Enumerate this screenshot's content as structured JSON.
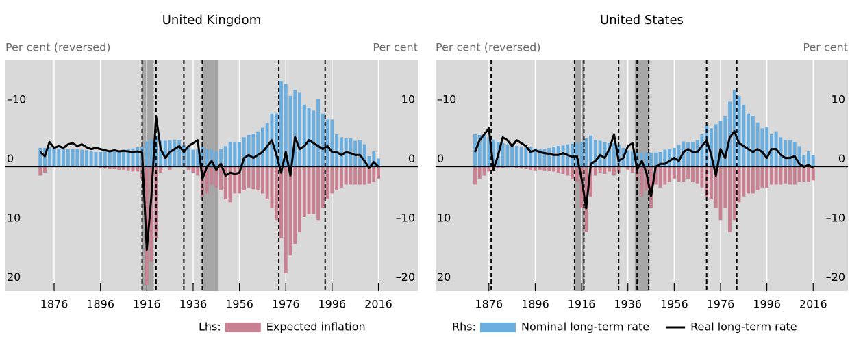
{
  "chart_data": [
    {
      "type": "bar",
      "title": "United Kingdom",
      "ylabel": "Per cent (reversed)",
      "y2label": "Per cent",
      "legend_label": "Lhs:",
      "x": [
        1870,
        1872,
        1874,
        1876,
        1878,
        1880,
        1882,
        1884,
        1886,
        1888,
        1890,
        1892,
        1894,
        1896,
        1898,
        1900,
        1902,
        1904,
        1906,
        1908,
        1910,
        1912,
        1914,
        1916,
        1918,
        1920,
        1922,
        1924,
        1926,
        1928,
        1930,
        1932,
        1934,
        1936,
        1938,
        1940,
        1942,
        1944,
        1946,
        1948,
        1950,
        1952,
        1954,
        1956,
        1958,
        1960,
        1962,
        1964,
        1966,
        1968,
        1970,
        1972,
        1974,
        1976,
        1978,
        1980,
        1982,
        1984,
        1986,
        1988,
        1990,
        1992,
        1994,
        1996,
        1998,
        2000,
        2002,
        2004,
        2006,
        2008,
        2010,
        2012,
        2014,
        2016
      ],
      "xlim": [
        1855,
        2033
      ],
      "xticks": [
        1876,
        1896,
        1916,
        1936,
        1956,
        1976,
        1996,
        2016
      ],
      "ylim": [
        21,
        -18
      ],
      "yticks": [
        {
          "value": -10,
          "label": "–10"
        },
        0,
        10,
        20
      ],
      "y2lim": [
        -21,
        18
      ],
      "y2ticks": [
        10,
        0,
        {
          "value": -10,
          "label": "–10"
        },
        {
          "value": -20,
          "label": "–20"
        }
      ],
      "shaded_periods": [
        [
          1914,
          1919
        ],
        [
          1940,
          1947
        ]
      ],
      "event_lines": [
        1914,
        1920,
        1932,
        1940,
        1973,
        1993
      ],
      "series": [
        {
          "name": "Expected inflation",
          "color": "#c98090",
          "axis": "y",
          "type": "bar",
          "values": [
            1.5,
            1.0,
            -0.3,
            -0.5,
            -0.3,
            -0.2,
            -0.2,
            -0.5,
            -0.6,
            -0.4,
            -0.3,
            -0.3,
            -0.2,
            0.2,
            0.3,
            0.4,
            0.4,
            0.5,
            0.5,
            0.6,
            0.8,
            0.8,
            2.0,
            20.0,
            16.0,
            12.0,
            1.0,
            -0.5,
            0.5,
            -0.5,
            -0.3,
            -0.5,
            0.5,
            1.0,
            1.5,
            5.0,
            4.5,
            3.0,
            3.5,
            4.0,
            5.5,
            6.0,
            4.5,
            4.5,
            4.0,
            3.5,
            3.8,
            4.0,
            4.5,
            5.5,
            7.0,
            9.0,
            12.0,
            18.0,
            15.0,
            13.0,
            11.0,
            8.5,
            8.0,
            8.0,
            9.0,
            7.0,
            5.5,
            4.5,
            4.0,
            3.5,
            3.0,
            3.0,
            3.0,
            3.0,
            3.0,
            2.8,
            2.5,
            2.0
          ]
        },
        {
          "color": "#6aaee0",
          "axis": "y2",
          "type": "bar",
          "values": [
            3.2,
            3.2,
            3.3,
            3.2,
            3.1,
            3.0,
            3.0,
            3.0,
            3.0,
            2.9,
            2.8,
            2.6,
            2.5,
            2.5,
            2.6,
            2.8,
            2.9,
            2.8,
            2.9,
            3.0,
            3.1,
            3.3,
            3.4,
            4.3,
            4.6,
            5.3,
            4.4,
            4.4,
            4.5,
            4.6,
            4.5,
            3.7,
            3.3,
            2.9,
            3.0,
            3.4,
            3.0,
            2.9,
            2.6,
            3.0,
            3.5,
            4.2,
            4.1,
            4.2,
            5.0,
            5.4,
            5.6,
            6.0,
            6.6,
            7.4,
            9.0,
            9.0,
            14.5,
            14.0,
            12.0,
            13.0,
            12.5,
            10.5,
            10.0,
            9.5,
            11.5,
            9.0,
            8.0,
            8.0,
            5.5,
            5.0,
            4.8,
            4.8,
            4.4,
            4.5,
            3.8,
            1.8,
            2.6,
            1.4
          ]
        },
        {
          "color": "#000000",
          "axis": "y2",
          "type": "line",
          "values": [
            2.5,
            1.8,
            4.2,
            3.2,
            3.5,
            3.2,
            3.8,
            4.0,
            3.5,
            3.8,
            3.3,
            3.0,
            3.2,
            3.0,
            2.8,
            2.6,
            2.8,
            2.6,
            2.7,
            2.6,
            2.5,
            2.6,
            2.4,
            -14.0,
            -5.0,
            8.5,
            3.0,
            1.5,
            2.5,
            3.0,
            3.5,
            2.5,
            3.5,
            4.0,
            4.5,
            -2.0,
            0.0,
            1.0,
            -0.5,
            0.5,
            -1.5,
            -1.0,
            -1.2,
            -1.0,
            1.5,
            2.0,
            1.5,
            2.0,
            2.5,
            3.5,
            4.5,
            2.0,
            -1.0,
            2.5,
            -1.5,
            5.0,
            3.0,
            3.5,
            4.5,
            4.0,
            3.5,
            3.0,
            3.5,
            2.5,
            2.5,
            2.0,
            2.5,
            2.3,
            2.0,
            2.0,
            1.0,
            -0.2,
            0.8,
            0.0
          ]
        }
      ]
    },
    {
      "type": "bar",
      "title": "United States",
      "ylabel": "Per cent (reversed)",
      "y2label": "Per cent",
      "legend_label": "Rhs:",
      "x": [
        1870,
        1872,
        1874,
        1876,
        1878,
        1880,
        1882,
        1884,
        1886,
        1888,
        1890,
        1892,
        1894,
        1896,
        1898,
        1900,
        1902,
        1904,
        1906,
        1908,
        1910,
        1912,
        1914,
        1916,
        1918,
        1920,
        1922,
        1924,
        1926,
        1928,
        1930,
        1932,
        1934,
        1936,
        1938,
        1940,
        1942,
        1944,
        1946,
        1948,
        1950,
        1952,
        1954,
        1956,
        1958,
        1960,
        1962,
        1964,
        1966,
        1968,
        1970,
        1972,
        1974,
        1976,
        1978,
        1980,
        1982,
        1984,
        1986,
        1988,
        1990,
        1992,
        1994,
        1996,
        1998,
        2000,
        2002,
        2004,
        2006,
        2008,
        2010,
        2012,
        2014,
        2016
      ],
      "xlim": [
        1853,
        2031
      ],
      "xticks": [
        1876,
        1896,
        1916,
        1936,
        1956,
        1976,
        1996,
        2016
      ],
      "ylim": [
        21,
        -18
      ],
      "yticks": [
        {
          "value": -10,
          "label": "–10"
        },
        0,
        10,
        20
      ],
      "y2lim": [
        -21,
        18
      ],
      "y2ticks": [
        10,
        0,
        {
          "value": -10,
          "label": "–10"
        },
        {
          "value": -20,
          "label": "–20"
        }
      ],
      "shaded_periods": [
        [
          1913,
          1917
        ],
        [
          1939,
          1945
        ]
      ],
      "event_lines": [
        1877,
        1913,
        1917,
        1932,
        1940,
        1945,
        1970,
        1983
      ],
      "series": [
        {
          "color": "#c98090",
          "axis": "y",
          "type": "bar",
          "values": [
            3.0,
            2.0,
            1.5,
            0.8,
            0.5,
            0.3,
            0.2,
            0.1,
            0.0,
            0.2,
            0.3,
            0.4,
            0.5,
            0.6,
            0.5,
            0.6,
            0.7,
            0.8,
            1.0,
            1.2,
            1.5,
            2.0,
            2.5,
            7.0,
            11.0,
            5.0,
            1.5,
            1.0,
            1.2,
            0.8,
            1.5,
            1.0,
            -0.5,
            0.5,
            1.0,
            2.0,
            5.0,
            4.0,
            7.0,
            3.0,
            3.5,
            3.0,
            2.5,
            2.0,
            2.5,
            2.5,
            2.0,
            2.5,
            2.8,
            3.5,
            5.0,
            5.5,
            7.0,
            9.0,
            7.0,
            11.0,
            9.0,
            6.0,
            5.0,
            4.5,
            4.5,
            4.0,
            3.5,
            3.5,
            3.0,
            3.0,
            3.0,
            2.8,
            3.0,
            3.0,
            2.5,
            2.5,
            2.5,
            2.3
          ]
        },
        {
          "name": "Nominal long-term rate",
          "color": "#6aaee0",
          "axis": "y2",
          "type": "bar",
          "values": [
            5.5,
            5.4,
            5.5,
            5.0,
            4.6,
            4.2,
            4.0,
            3.8,
            3.6,
            3.5,
            3.3,
            3.2,
            3.3,
            3.1,
            3.0,
            3.0,
            3.2,
            3.4,
            3.5,
            3.6,
            3.8,
            3.9,
            4.0,
            4.2,
            4.8,
            5.3,
            4.5,
            4.4,
            4.2,
            4.0,
            4.0,
            3.8,
            3.2,
            2.8,
            2.6,
            2.3,
            2.4,
            2.4,
            2.3,
            2.4,
            2.5,
            2.9,
            3.0,
            3.2,
            3.7,
            4.3,
            4.1,
            4.2,
            4.5,
            5.5,
            7.0,
            6.5,
            7.2,
            7.8,
            8.5,
            11.0,
            13.0,
            12.0,
            10.5,
            9.0,
            8.6,
            7.5,
            6.5,
            6.7,
            5.5,
            6.0,
            5.0,
            4.5,
            4.5,
            4.2,
            3.5,
            2.0,
            2.6,
            2.0
          ]
        },
        {
          "name": "Real long-term rate",
          "color": "#000000",
          "axis": "y2",
          "type": "line",
          "values": [
            2.5,
            4.5,
            5.5,
            6.5,
            -0.5,
            2.0,
            5.0,
            4.5,
            3.5,
            4.5,
            4.0,
            3.5,
            2.5,
            2.8,
            2.5,
            2.3,
            2.2,
            2.0,
            2.0,
            2.3,
            2.0,
            1.7,
            1.8,
            -2.0,
            -7.0,
            0.5,
            1.0,
            2.0,
            1.5,
            3.0,
            5.5,
            1.0,
            1.5,
            3.5,
            4.0,
            -0.5,
            1.0,
            -1.0,
            -5.0,
            0.0,
            0.5,
            0.5,
            1.0,
            1.5,
            1.0,
            2.5,
            3.0,
            2.5,
            2.5,
            3.5,
            4.5,
            2.0,
            -1.5,
            3.0,
            1.5,
            5.0,
            6.0,
            4.0,
            3.5,
            3.0,
            2.5,
            3.0,
            2.5,
            1.5,
            3.0,
            3.0,
            2.0,
            1.5,
            1.5,
            1.8,
            0.5,
            0.0,
            0.3,
            -0.2
          ]
        }
      ]
    }
  ]
}
